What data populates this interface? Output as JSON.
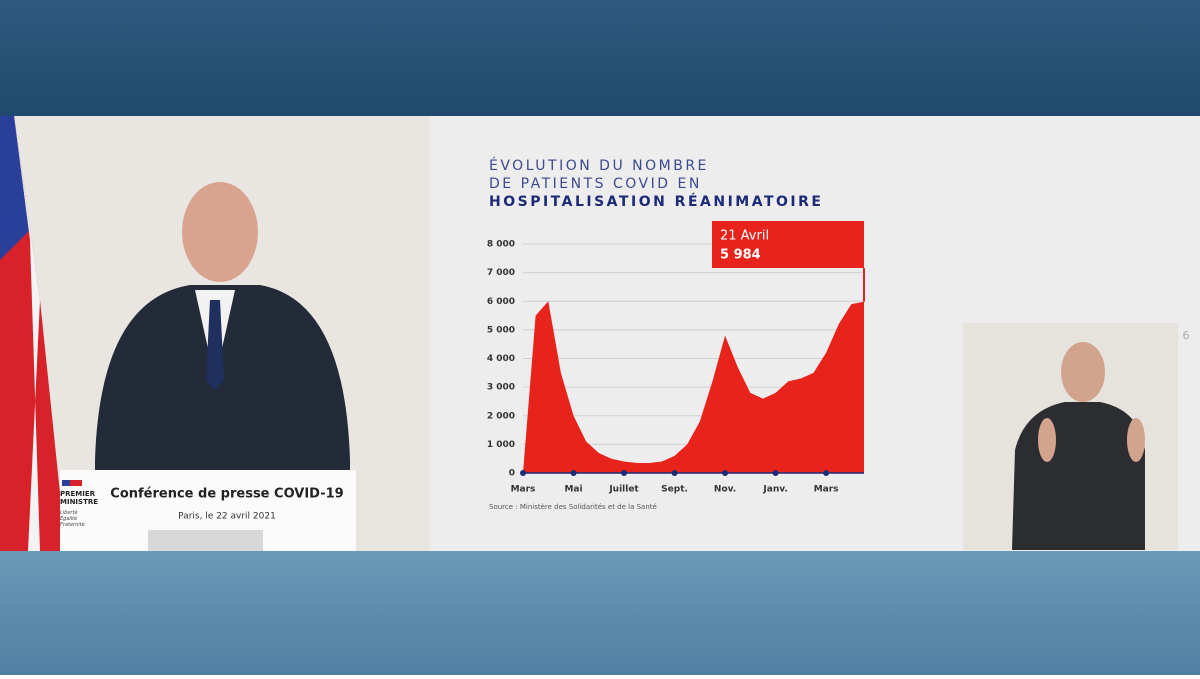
{
  "chart_data": {
    "type": "area",
    "title_lines": [
      "ÉVOLUTION DU NOMBRE",
      "DE PATIENTS COVID EN",
      "HOSPITALISATION RÉANIMATOIRE"
    ],
    "categories": [
      "Mars",
      null,
      null,
      null,
      "Mai",
      null,
      null,
      null,
      "Juillet",
      null,
      null,
      null,
      "Sept.",
      null,
      null,
      null,
      "Nov.",
      null,
      null,
      null,
      "Janv.",
      null,
      null,
      null,
      "Mars",
      null,
      null,
      null
    ],
    "values": [
      0,
      5500,
      6000,
      3500,
      2000,
      1100,
      700,
      500,
      400,
      350,
      350,
      400,
      600,
      1000,
      1800,
      3200,
      4800,
      3700,
      2800,
      2600,
      2800,
      3200,
      3300,
      3500,
      4200,
      5200,
      5900,
      5984
    ],
    "color": "#e8231c",
    "ylim": [
      0,
      8000
    ],
    "yticks": [
      0,
      {
        "value": 1000,
        "label": "1 000"
      },
      {
        "value": 2000,
        "label": "2 000"
      },
      {
        "value": 3000,
        "label": "3 000"
      },
      {
        "value": 4000,
        "label": "4 000"
      },
      {
        "value": 5000,
        "label": "5 000"
      },
      {
        "value": 6000,
        "label": "6 000"
      },
      {
        "value": 7000,
        "label": "7 000"
      },
      {
        "value": 8000,
        "label": "8 000"
      }
    ],
    "grid": true,
    "annotation": {
      "date": "21 Avril",
      "value": 5984,
      "label": "5 984"
    },
    "source": "Source : Ministère des Solidarités et de la Santé"
  },
  "podium": {
    "title": "Conférence de presse COVID-19",
    "subtitle": "Paris, le 22 avril 2021"
  },
  "logo": {
    "name_lines": [
      "PREMIER",
      "MINISTRE"
    ],
    "motto_lines": [
      "Liberté",
      "Égalité",
      "Fraternité"
    ]
  },
  "page_number": "6"
}
